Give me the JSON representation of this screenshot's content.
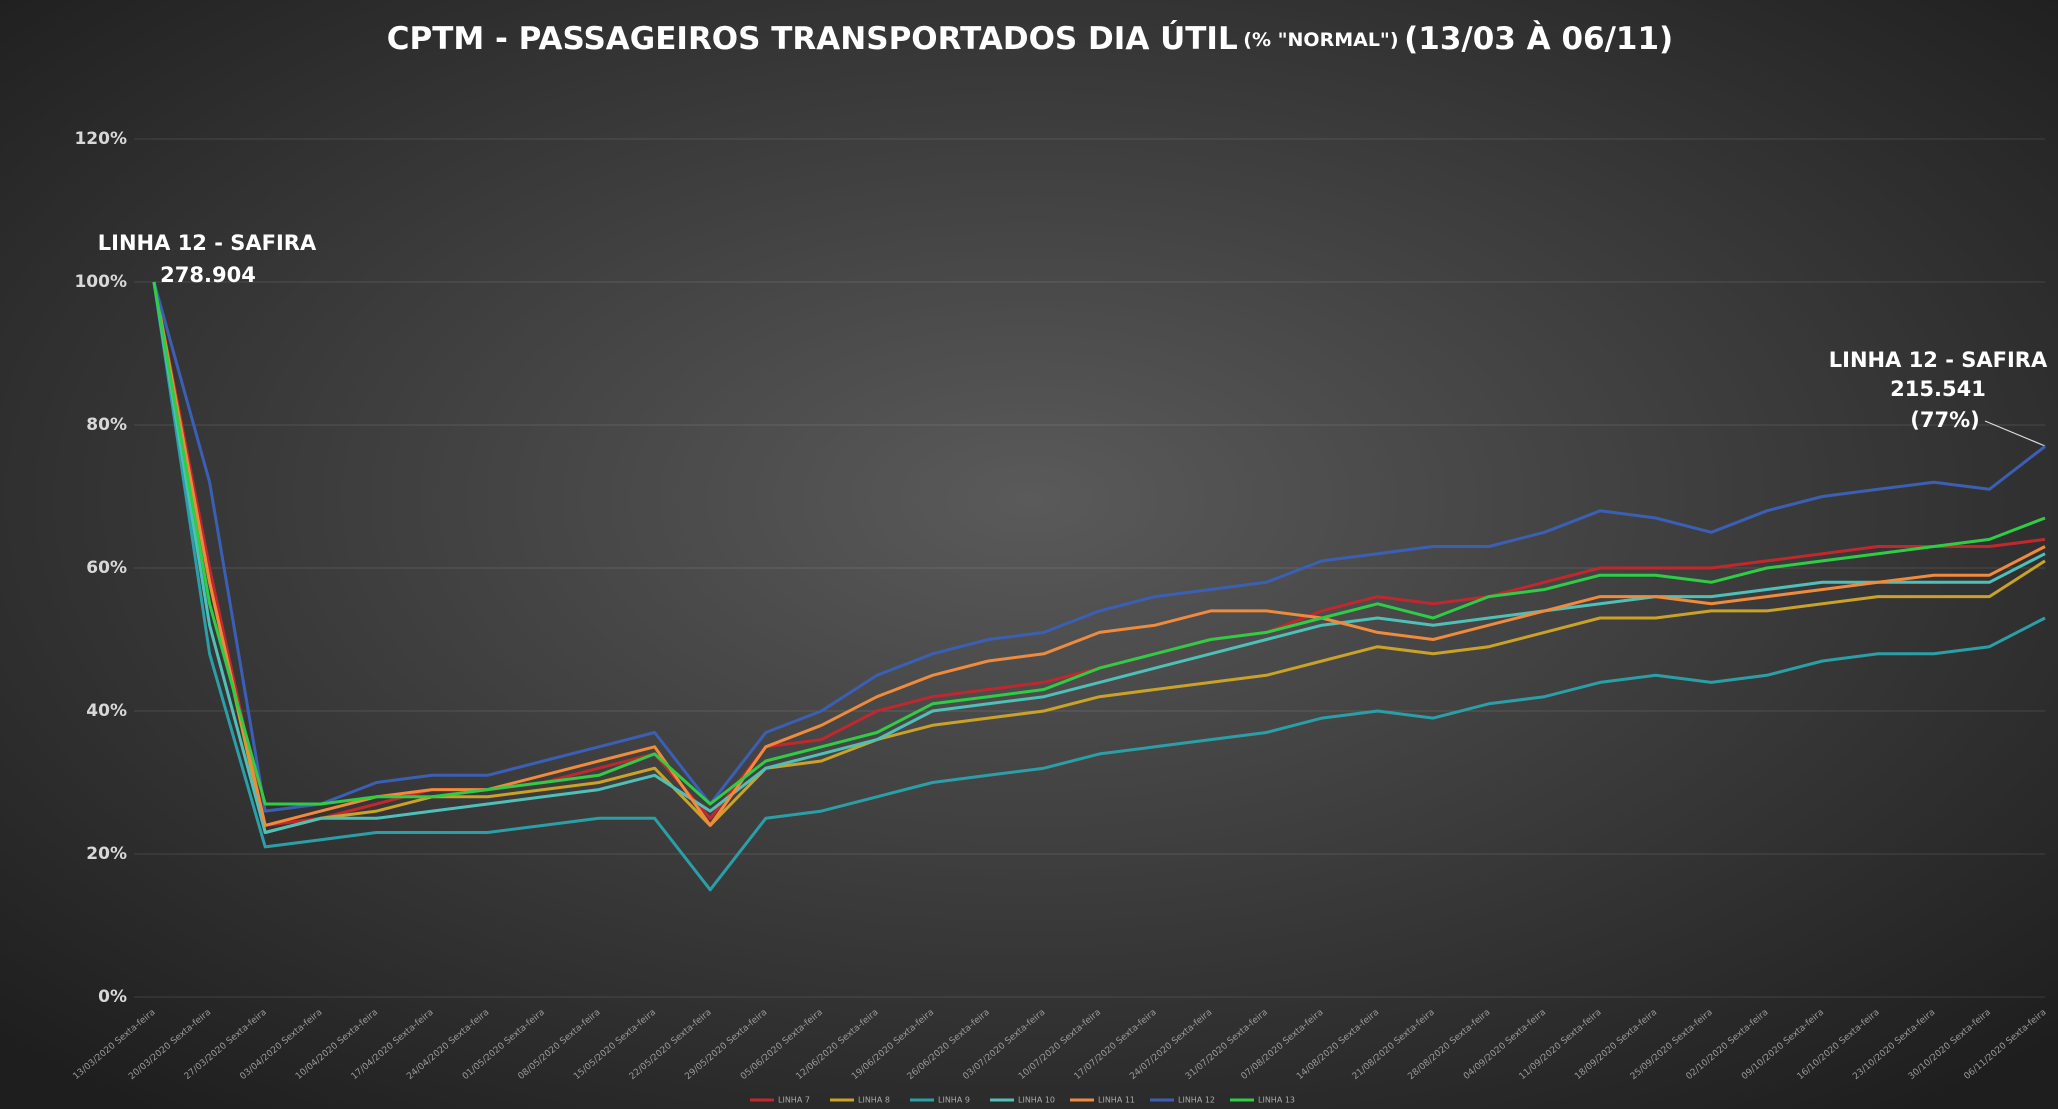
{
  "chart_data": {
    "type": "line",
    "title": "CPTM - PASSAGEIROS TRANSPORTADOS DIA ÚTIL",
    "title_note": "(% \"NORMAL\")",
    "title_period": "(13/03 À 06/11)",
    "categories": [
      "13/03/2020 Sexta-feira",
      "20/03/2020 Sexta-feira",
      "27/03/2020 Sexta-feira",
      "03/04/2020 Sexta-feira",
      "10/04/2020 Sexta-feira",
      "17/04/2020 Sexta-feira",
      "24/04/2020 Sexta-feira",
      "01/05/2020 Sexta-feira",
      "08/05/2020 Sexta-feira",
      "15/05/2020 Sexta-feira",
      "22/05/2020 Sexta-feira",
      "29/05/2020 Sexta-feira",
      "05/06/2020 Sexta-feira",
      "12/06/2020 Sexta-feira",
      "19/06/2020 Sexta-feira",
      "26/06/2020 Sexta-feira",
      "03/07/2020 Sexta-feira",
      "10/07/2020 Sexta-feira",
      "17/07/2020 Sexta-feira",
      "24/07/2020 Sexta-feira",
      "31/07/2020 Sexta-feira",
      "07/08/2020 Sexta-feira",
      "14/08/2020 Sexta-feira",
      "21/08/2020 Sexta-feira",
      "28/08/2020 Sexta-feira",
      "04/09/2020 Sexta-feira",
      "11/09/2020 Sexta-feira",
      "18/09/2020 Sexta-feira",
      "25/09/2020 Sexta-feira",
      "02/10/2020 Sexta-feira",
      "09/10/2020 Sexta-feira",
      "16/10/2020 Sexta-feira",
      "23/10/2020 Sexta-feira",
      "30/10/2020 Sexta-feira",
      "06/11/2020 Sexta-feira"
    ],
    "series": [
      {
        "name": "LINHA 7",
        "color": "#c1272d",
        "values": [
          100,
          60,
          24,
          25,
          27,
          29,
          29,
          30,
          32,
          34,
          25,
          35,
          36,
          40,
          42,
          43,
          44,
          46,
          48,
          50,
          51,
          54,
          56,
          55,
          56,
          58,
          60,
          60,
          60,
          61,
          62,
          63,
          63,
          63,
          64
        ]
      },
      {
        "name": "LINHA 8",
        "color": "#c9a227",
        "values": [
          100,
          58,
          23,
          25,
          26,
          28,
          28,
          29,
          30,
          32,
          24,
          32,
          33,
          36,
          38,
          39,
          40,
          42,
          43,
          44,
          45,
          47,
          49,
          48,
          49,
          51,
          53,
          53,
          54,
          54,
          55,
          56,
          56,
          56,
          61
        ]
      },
      {
        "name": "LINHA 9",
        "color": "#2a9fa8",
        "values": [
          100,
          48,
          21,
          22,
          23,
          23,
          23,
          24,
          25,
          25,
          15,
          25,
          26,
          28,
          30,
          31,
          32,
          34,
          35,
          36,
          37,
          39,
          40,
          39,
          41,
          42,
          44,
          45,
          44,
          45,
          47,
          48,
          48,
          49,
          53
        ]
      },
      {
        "name": "LINHA 10",
        "color": "#4fc0b8",
        "values": [
          100,
          52,
          23,
          25,
          25,
          26,
          27,
          28,
          29,
          31,
          26,
          32,
          34,
          36,
          40,
          41,
          42,
          44,
          46,
          48,
          50,
          52,
          53,
          52,
          53,
          54,
          55,
          56,
          56,
          57,
          58,
          58,
          58,
          58,
          62
        ]
      },
      {
        "name": "LINHA 11",
        "color": "#f08a3c",
        "values": [
          100,
          58,
          24,
          26,
          28,
          29,
          29,
          31,
          33,
          35,
          24,
          35,
          38,
          42,
          45,
          47,
          48,
          51,
          52,
          54,
          54,
          53,
          51,
          50,
          52,
          54,
          56,
          56,
          55,
          56,
          57,
          58,
          59,
          59,
          63
        ]
      },
      {
        "name": "LINHA 12",
        "color": "#3b5fb5",
        "values": [
          100,
          72,
          26,
          27,
          30,
          31,
          31,
          33,
          35,
          37,
          27,
          37,
          40,
          45,
          48,
          50,
          51,
          54,
          56,
          57,
          58,
          61,
          62,
          63,
          63,
          65,
          68,
          67,
          65,
          68,
          70,
          71,
          72,
          71,
          77
        ]
      },
      {
        "name": "LINHA 13",
        "color": "#2fcc45",
        "values": [
          100,
          55,
          27,
          27,
          28,
          28,
          29,
          30,
          31,
          34,
          27,
          33,
          35,
          37,
          41,
          42,
          43,
          46,
          48,
          50,
          51,
          53,
          55,
          53,
          56,
          57,
          59,
          59,
          58,
          60,
          61,
          62,
          63,
          64,
          67
        ]
      }
    ],
    "ylim": [
      0,
      120
    ],
    "yticks": [
      {
        "value": 0,
        "label": "0%"
      },
      {
        "value": 20,
        "label": "20%"
      },
      {
        "value": 40,
        "label": "40%"
      },
      {
        "value": 60,
        "label": "60%"
      },
      {
        "value": 80,
        "label": "80%"
      },
      {
        "value": 100,
        "label": "100%"
      },
      {
        "value": 120,
        "label": "120%"
      }
    ],
    "grid": true,
    "legend": "bottom",
    "annotations": [
      {
        "title": "LINHA 12 - SAFIRA",
        "value": "278.904"
      },
      {
        "title": "LINHA 12 - SAFIRA",
        "value": "215.541",
        "percent": "(77%)"
      }
    ]
  }
}
